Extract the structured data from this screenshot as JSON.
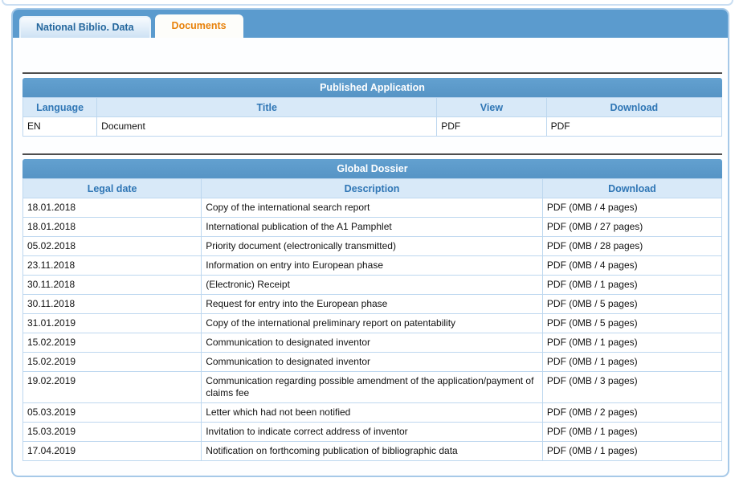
{
  "tabs": [
    {
      "label": "National Biblio. Data",
      "active": false
    },
    {
      "label": "Documents",
      "active": true
    }
  ],
  "published_application": {
    "title": "Published Application",
    "columns": [
      "Language",
      "Title",
      "View",
      "Download"
    ],
    "interactive_columns": [
      2,
      3
    ],
    "rows": [
      [
        "EN",
        "Document",
        "PDF",
        "PDF"
      ]
    ]
  },
  "global_dossier": {
    "title": "Global Dossier",
    "columns": [
      "Legal date",
      "Description",
      "Download"
    ],
    "interactive_columns": [
      2
    ],
    "rows": [
      [
        "18.01.2018",
        "Copy of the international search report",
        "PDF (0MB / 4 pages)"
      ],
      [
        "18.01.2018",
        "International publication of the A1 Pamphlet",
        "PDF (0MB / 27 pages)"
      ],
      [
        "05.02.2018",
        "Priority document (electronically transmitted)",
        "PDF (0MB / 28 pages)"
      ],
      [
        "23.11.2018",
        "Information on entry into European phase",
        "PDF (0MB / 4 pages)"
      ],
      [
        "30.11.2018",
        "(Electronic) Receipt",
        "PDF (0MB / 1 pages)"
      ],
      [
        "30.11.2018",
        "Request for entry into the European phase",
        "PDF (0MB / 5 pages)"
      ],
      [
        "31.01.2019",
        "Copy of the international preliminary report on patentability",
        "PDF (0MB / 5 pages)"
      ],
      [
        "15.02.2019",
        "Communication to designated inventor",
        "PDF (0MB / 1 pages)"
      ],
      [
        "15.02.2019",
        "Communication to designated inventor",
        "PDF (0MB / 1 pages)"
      ],
      [
        "19.02.2019",
        "Communication regarding possible amendment of the application/payment of claims fee",
        "PDF (0MB / 3 pages)"
      ],
      [
        "05.03.2019",
        "Letter which had not been notified",
        "PDF (0MB / 2 pages)"
      ],
      [
        "15.03.2019",
        "Invitation to indicate correct address of inventor",
        "PDF (0MB / 1 pages)"
      ],
      [
        "17.04.2019",
        "Notification on forthcoming publication of bibliographic data",
        "PDF (0MB / 1 pages)"
      ]
    ]
  },
  "colors": {
    "tab_strip_blue": "#5b9bce",
    "table_title_blue": "#5b9aca",
    "column_header_bg": "#d8e9f8",
    "column_header_text": "#2f76b5",
    "inactive_tab_text": "#25679d",
    "active_tab_text": "#e8820c",
    "panel_border": "#a6c9e8",
    "cell_border": "#bdd7ef",
    "section_divider": "#4e4e4e"
  }
}
